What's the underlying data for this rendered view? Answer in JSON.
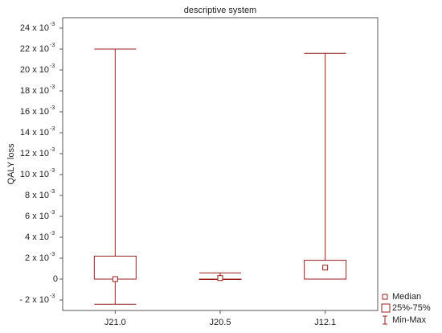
{
  "chart_data": {
    "type": "box",
    "title": "descriptive system",
    "ylabel": "QALY loss",
    "categories": [
      "J21.0",
      "J20.5",
      "J12.1"
    ],
    "min": [
      -0.0024,
      0,
      0
    ],
    "q1": [
      0,
      0,
      0
    ],
    "median": [
      0,
      0.0001,
      0.0011
    ],
    "q3": [
      0.0022,
      0,
      0.0018
    ],
    "max": [
      0.022,
      0.0006,
      0.0216
    ],
    "color": "#9b1c1c",
    "ylim": [
      -0.003,
      0.025
    ],
    "y_exponent": "-3",
    "yticks": [
      {
        "value": -0.002,
        "label": "- 2 x 10"
      },
      0,
      {
        "value": 0.002,
        "label": "2 x 10"
      },
      {
        "value": 0.004,
        "label": "4 x 10"
      },
      {
        "value": 0.006,
        "label": "6 x 10"
      },
      {
        "value": 0.008,
        "label": "8 x 10"
      },
      {
        "value": 0.01,
        "label": "10 x 10"
      },
      {
        "value": 0.012,
        "label": "12 x 10"
      },
      {
        "value": 0.014,
        "label": "14 x 10"
      },
      {
        "value": 0.016,
        "label": "16 x 10"
      },
      {
        "value": 0.018,
        "label": "18 x 10"
      },
      {
        "value": 0.02,
        "label": "20 x 10"
      },
      {
        "value": 0.022,
        "label": "22 x 10"
      },
      {
        "value": 0.024,
        "label": "24 x 10"
      }
    ],
    "legend": [
      "Median",
      "25%-75%",
      "Min-Max"
    ],
    "legend_position": "bottom-right"
  }
}
